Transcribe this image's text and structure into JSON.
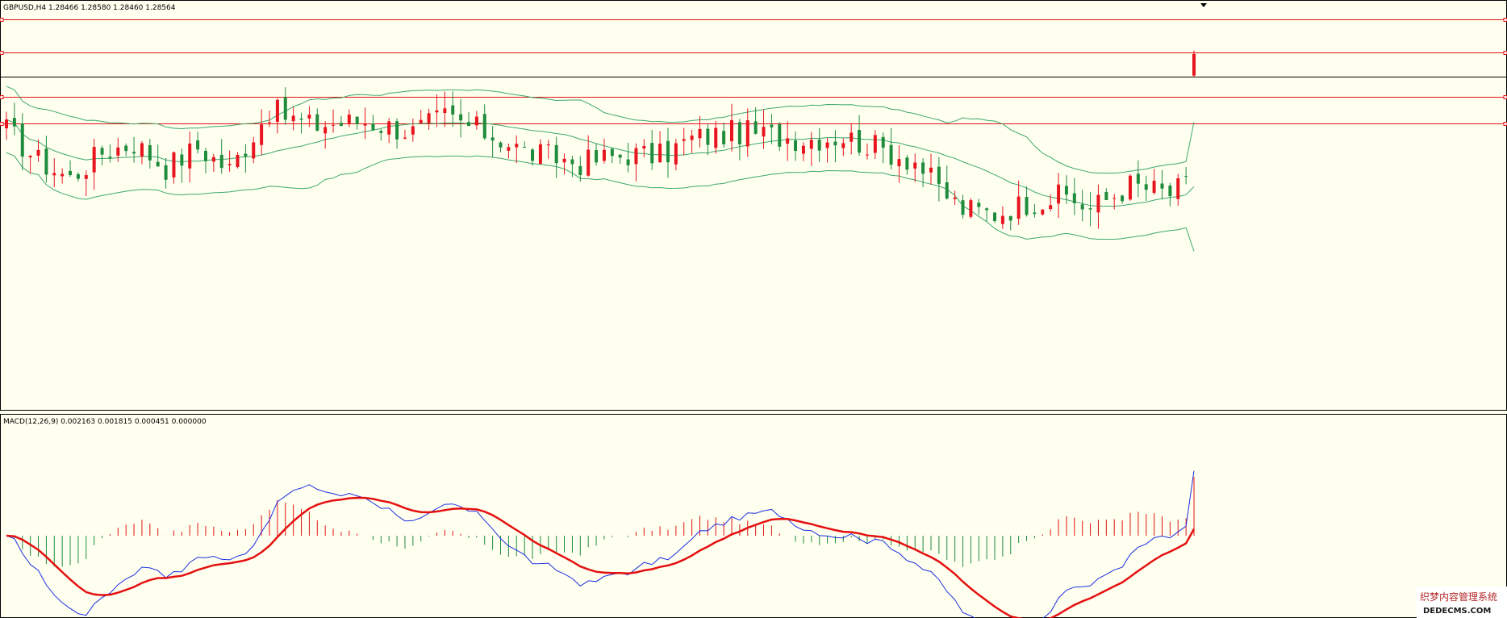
{
  "main_header": "GBPUSD,H4  1.28466 1.28580 1.28460 1.28564",
  "macd_header": "MACD(12,26,9) 0.002163 0.001815 0.000451 0.000000",
  "watermark": {
    "cn": "织梦内容管理系统",
    "en": "DEDECMS.COM"
  },
  "colors": {
    "background": "#fffff0",
    "bull": "#e8141e",
    "bear": "#1e8c3c",
    "bands": "#3ca86a",
    "level_lines": "#e01010",
    "macd_main": "#1a2ee0",
    "macd_signal": "#e41010",
    "hist_pos": "#e41010",
    "hist_neg": "#1e8c3c"
  },
  "chart_data": [
    {
      "type": "candlestick",
      "symbol": "GBPUSD",
      "timeframe": "H4",
      "last_bar": {
        "open": 1.28466,
        "high": 1.2858,
        "low": 1.2846,
        "close": 1.28564
      },
      "price_range": [
        1.2695,
        1.2875
      ],
      "horizontal_levels": [
        1.2872,
        1.2857,
        1.2846,
        1.2837,
        1.2825
      ],
      "candle_count": 150,
      "anchors": [
        [
          0,
          1.2822
        ],
        [
          4,
          1.2808
        ],
        [
          8,
          1.28
        ],
        [
          12,
          1.2812
        ],
        [
          16,
          1.2816
        ],
        [
          20,
          1.2805
        ],
        [
          24,
          1.2814
        ],
        [
          28,
          1.2804
        ],
        [
          33,
          1.2831
        ],
        [
          38,
          1.2824
        ],
        [
          45,
          1.2826
        ],
        [
          51,
          1.2821
        ],
        [
          55,
          1.2828
        ],
        [
          62,
          1.2818
        ],
        [
          65,
          1.2812
        ],
        [
          72,
          1.2807
        ],
        [
          78,
          1.2811
        ],
        [
          82,
          1.281
        ],
        [
          86,
          1.2818
        ],
        [
          88,
          1.2819
        ],
        [
          92,
          1.2821
        ],
        [
          95,
          1.282
        ],
        [
          100,
          1.2818
        ],
        [
          105,
          1.2819
        ],
        [
          110,
          1.2813
        ],
        [
          114,
          1.2808
        ],
        [
          117,
          1.2795
        ],
        [
          120,
          1.2786
        ],
        [
          124,
          1.2784
        ],
        [
          128,
          1.2789
        ],
        [
          133,
          1.2792
        ],
        [
          136,
          1.2786
        ],
        [
          141,
          1.2797
        ],
        [
          146,
          1.2793
        ],
        [
          150,
          1.2801
        ]
      ]
    },
    {
      "type": "macd",
      "fast": 12,
      "slow": 26,
      "signal": 9,
      "values": {
        "main": 0.002163,
        "signal": 0.001815,
        "histogram": 0.000451
      },
      "zero_line": 0.0
    }
  ]
}
